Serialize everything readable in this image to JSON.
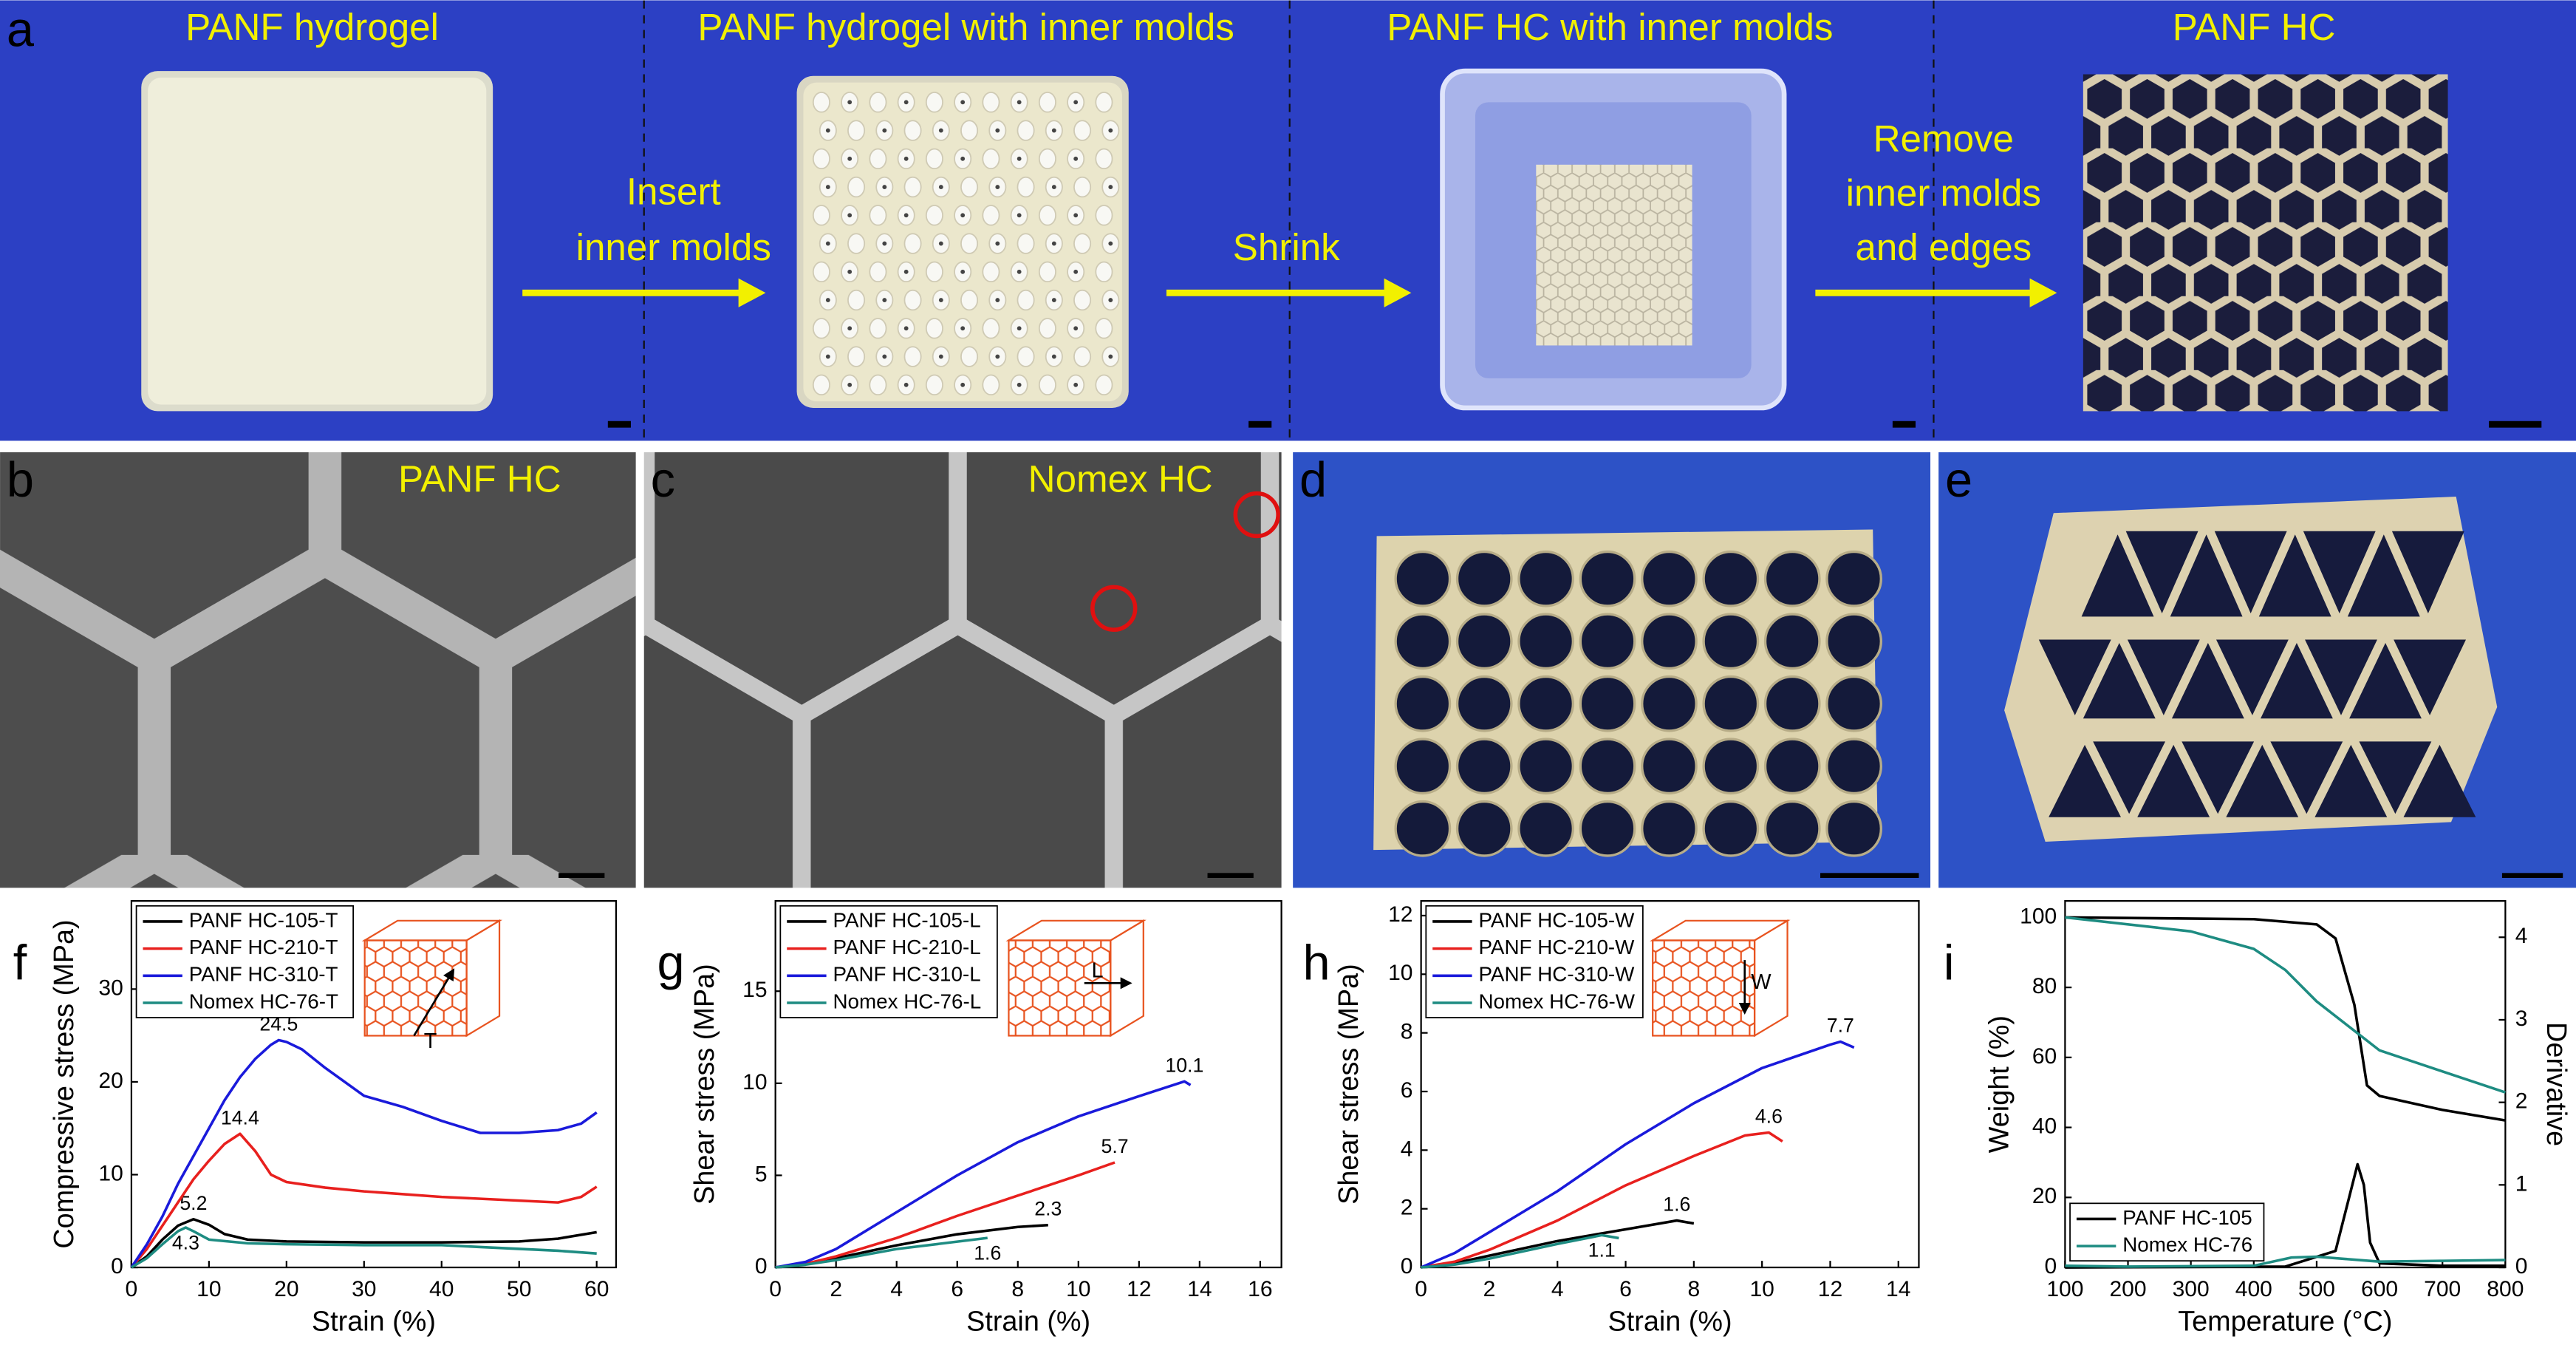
{
  "photos": {
    "a": {
      "letter": "a",
      "titles": [
        "PANF hydrogel",
        "PANF hydrogel with inner molds",
        "PANF HC with inner molds",
        "PANF HC"
      ],
      "arrow_texts": [
        [
          "Insert",
          "inner molds"
        ],
        [
          "Shrink"
        ],
        [
          "Remove",
          "inner molds",
          "and edges"
        ]
      ]
    },
    "b": {
      "letter": "b",
      "title": "PANF HC"
    },
    "c": {
      "letter": "c",
      "title": "Nomex HC"
    },
    "d": {
      "letter": "d"
    },
    "e": {
      "letter": "e"
    }
  },
  "chart_data": [
    {
      "type": "line",
      "panel": "f",
      "xlabel": "Strain (%)",
      "ylabel": "Compressive stress (MPa)",
      "inset_label": "T",
      "xlim": [
        0,
        62.5
      ],
      "ylim": [
        0,
        39.5
      ],
      "xticks": [
        0,
        10,
        20,
        30,
        40,
        50,
        60
      ],
      "yticks": [
        0,
        10,
        20,
        30
      ],
      "legend": "upper left",
      "peak_labels": true,
      "series": [
        {
          "name": "PANF HC-105-T",
          "color": "#000000",
          "x": [
            0,
            2,
            4,
            6,
            8,
            10,
            12,
            15,
            20,
            30,
            40,
            50,
            55,
            60
          ],
          "values": [
            0,
            1.2,
            3,
            4.5,
            5.2,
            4.6,
            3.6,
            3,
            2.8,
            2.7,
            2.7,
            2.8,
            3.1,
            3.8
          ]
        },
        {
          "name": "PANF HC-210-T",
          "color": "#e8201e",
          "x": [
            0,
            2,
            4,
            6,
            8,
            10,
            12,
            14,
            16,
            18,
            20,
            25,
            30,
            40,
            50,
            55,
            58,
            60
          ],
          "values": [
            0,
            2,
            4.5,
            7,
            9.5,
            11.5,
            13.3,
            14.4,
            12.5,
            10,
            9.2,
            8.6,
            8.2,
            7.6,
            7.2,
            7,
            7.6,
            8.7
          ]
        },
        {
          "name": "PANF HC-310-T",
          "color": "#1a1adb",
          "x": [
            0,
            2,
            4,
            6,
            8,
            10,
            12,
            14,
            16,
            18,
            19,
            20,
            22,
            25,
            30,
            35,
            40,
            45,
            50,
            55,
            58,
            60
          ],
          "values": [
            0,
            2.5,
            5.5,
            9,
            12,
            15,
            18,
            20.5,
            22.5,
            24,
            24.5,
            24.3,
            23.5,
            21.5,
            18.5,
            17.3,
            15.8,
            14.5,
            14.5,
            14.8,
            15.5,
            16.7
          ]
        },
        {
          "name": "Nomex HC-76-T",
          "color": "#1e8c82",
          "x": [
            0,
            2,
            4,
            6,
            7,
            8,
            10,
            15,
            20,
            30,
            40,
            45,
            50,
            55,
            60
          ],
          "values": [
            0,
            1,
            2.5,
            3.9,
            4.3,
            3.9,
            3.0,
            2.6,
            2.5,
            2.4,
            2.4,
            2.2,
            2,
            1.8,
            1.5
          ]
        }
      ]
    },
    {
      "type": "line",
      "panel": "g",
      "xlabel": "Strain (%)",
      "ylabel": "Shear stress (MPa)",
      "inset_label": "L",
      "xlim": [
        0,
        16.7
      ],
      "ylim": [
        0,
        19.9
      ],
      "xticks": [
        0,
        2,
        4,
        6,
        8,
        10,
        12,
        14,
        16
      ],
      "yticks": [
        0,
        5,
        10,
        15
      ],
      "legend": "upper left",
      "peak_labels": true,
      "series": [
        {
          "name": "PANF HC-105-L",
          "color": "#000000",
          "x": [
            0,
            1,
            2,
            4,
            6,
            8,
            9
          ],
          "values": [
            0,
            0.2,
            0.5,
            1.2,
            1.8,
            2.2,
            2.3
          ]
        },
        {
          "name": "PANF HC-210-L",
          "color": "#e8201e",
          "x": [
            0,
            1,
            2,
            4,
            6,
            8,
            10,
            11.2
          ],
          "values": [
            0,
            0.2,
            0.6,
            1.6,
            2.8,
            3.9,
            5.0,
            5.7
          ]
        },
        {
          "name": "PANF HC-310-L",
          "color": "#1a1adb",
          "x": [
            0,
            1,
            2,
            4,
            6,
            8,
            10,
            12,
            13.5,
            13.7
          ],
          "values": [
            0,
            0.3,
            1.0,
            3.0,
            5.0,
            6.8,
            8.2,
            9.3,
            10.1,
            9.9
          ]
        },
        {
          "name": "Nomex HC-76-L",
          "color": "#1e8c82",
          "x": [
            0,
            1,
            2,
            4,
            6,
            7
          ],
          "values": [
            0,
            0.15,
            0.4,
            1.0,
            1.4,
            1.6
          ]
        }
      ]
    },
    {
      "type": "line",
      "panel": "h",
      "xlabel": "Strain (%)",
      "ylabel": "Shear stress (MPa)",
      "inset_label": "W",
      "xlim": [
        0,
        14.6
      ],
      "ylim": [
        0,
        12.5
      ],
      "xticks": [
        0,
        2,
        4,
        6,
        8,
        10,
        12,
        14
      ],
      "yticks": [
        0,
        2,
        4,
        6,
        8,
        10,
        12
      ],
      "legend": "upper left",
      "peak_labels": true,
      "series": [
        {
          "name": "PANF HC-105-W",
          "color": "#000000",
          "x": [
            0,
            1,
            2,
            4,
            6,
            7.5,
            8
          ],
          "values": [
            0,
            0.15,
            0.4,
            0.9,
            1.3,
            1.6,
            1.5
          ]
        },
        {
          "name": "PANF HC-210-W",
          "color": "#e8201e",
          "x": [
            0,
            1,
            2,
            4,
            6,
            8,
            9.5,
            10.2,
            10.6
          ],
          "values": [
            0,
            0.2,
            0.6,
            1.6,
            2.8,
            3.8,
            4.5,
            4.6,
            4.3
          ]
        },
        {
          "name": "PANF HC-310-W",
          "color": "#1a1adb",
          "x": [
            0,
            1,
            2,
            4,
            6,
            8,
            10,
            12,
            12.3,
            12.7
          ],
          "values": [
            0,
            0.5,
            1.2,
            2.6,
            4.2,
            5.6,
            6.8,
            7.6,
            7.7,
            7.5
          ]
        },
        {
          "name": "Nomex HC-76-W",
          "color": "#1e8c82",
          "x": [
            0,
            1,
            2,
            4,
            5.3,
            5.8
          ],
          "values": [
            0,
            0.1,
            0.3,
            0.8,
            1.1,
            1.0
          ]
        }
      ]
    },
    {
      "type": "line",
      "panel": "i",
      "xlabel": "Temperature (°C)",
      "ylabel": "Weight (%)",
      "y2label": "Derivative",
      "xlim": [
        100,
        800
      ],
      "ylim": [
        0,
        104.7
      ],
      "y2lim": [
        0,
        4.44
      ],
      "xticks": [
        100,
        200,
        300,
        400,
        500,
        600,
        700,
        800
      ],
      "yticks": [
        0,
        20,
        40,
        60,
        80,
        100
      ],
      "y2ticks": [
        0,
        1,
        2,
        3,
        4
      ],
      "legend": "lower left",
      "peak_labels": false,
      "series": [
        {
          "name": "PANF HC-105",
          "color": "#000000",
          "x": [
            100,
            400,
            500,
            530,
            560,
            580,
            600,
            700,
            800
          ],
          "values": [
            100,
            99.5,
            98,
            94,
            75,
            52,
            49,
            45,
            42
          ]
        },
        {
          "name": "Nomex HC-76",
          "color": "#1e8c82",
          "x": [
            100,
            300,
            400,
            450,
            500,
            600,
            700,
            800
          ],
          "values": [
            100,
            96,
            91,
            85,
            76,
            62,
            56,
            50
          ]
        },
        {
          "color": "#000000",
          "axis": "y2",
          "x": [
            100,
            450,
            530,
            550,
            565,
            575,
            585,
            600,
            700,
            800
          ],
          "values": [
            0,
            0.01,
            0.2,
            0.8,
            1.25,
            1.0,
            0.3,
            0.05,
            0.02,
            0.02
          ]
        },
        {
          "color": "#1e8c82",
          "axis": "y2",
          "x": [
            100,
            200,
            400,
            460,
            500,
            550,
            600,
            700,
            800
          ],
          "values": [
            0.02,
            0.01,
            0.02,
            0.12,
            0.13,
            0.1,
            0.07,
            0.08,
            0.09
          ]
        }
      ]
    }
  ]
}
